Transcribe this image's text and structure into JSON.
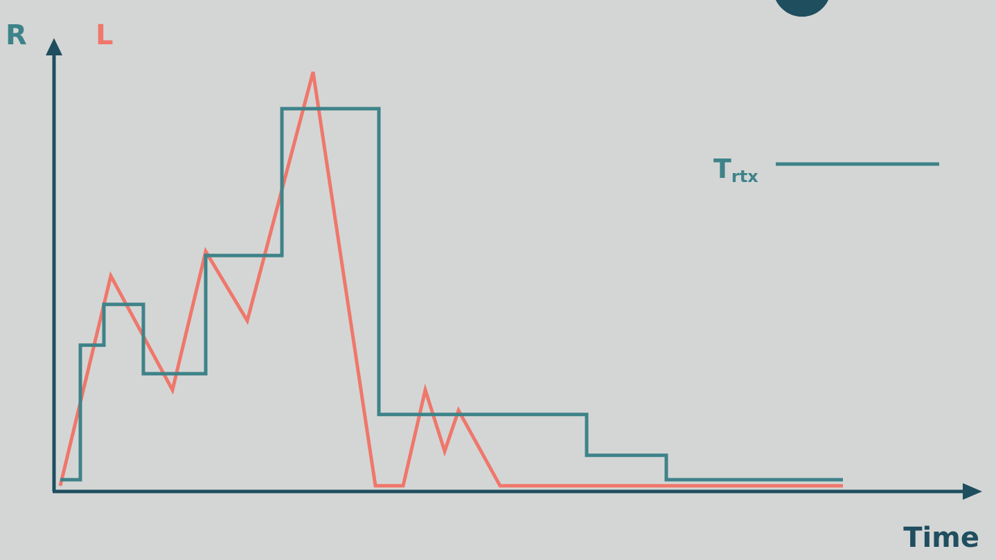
{
  "colors": {
    "background": "#d4d6d5",
    "axis": "#1f4e5f",
    "rtx_line": "#3e8389",
    "load_line": "#ef776b"
  },
  "labels": {
    "r_axis": "R",
    "l_axis": "L",
    "x_axis": "Time",
    "legend_main": "T",
    "legend_sub": "rtx"
  },
  "chart_data": {
    "type": "line",
    "xlabel": "Time",
    "ylabel": "",
    "grid": false,
    "legend_position": "right",
    "series": [
      {
        "name": "Trtx",
        "color": "#3e8389",
        "step": true,
        "points": [
          [
            0,
            0
          ],
          [
            2.9,
            0
          ],
          [
            2.9,
            3.3
          ],
          [
            6.3,
            3.3
          ],
          [
            6.3,
            4.3
          ],
          [
            12.0,
            4.3
          ],
          [
            12.0,
            2.6
          ],
          [
            21.0,
            2.6
          ],
          [
            21.0,
            5.5
          ],
          [
            32.0,
            5.5
          ],
          [
            32.0,
            9.1
          ],
          [
            46.0,
            9.1
          ],
          [
            46.0,
            1.6
          ],
          [
            76.0,
            1.6
          ],
          [
            76.0,
            0.6
          ],
          [
            87.5,
            0.6
          ],
          [
            87.5,
            0.0
          ],
          [
            113.0,
            0.0
          ]
        ]
      },
      {
        "name": "L",
        "color": "#ef776b",
        "step": false,
        "points": [
          [
            0,
            -0.15
          ],
          [
            7.3,
            5.0
          ],
          [
            16.2,
            2.2
          ],
          [
            21.0,
            5.6
          ],
          [
            27.0,
            3.9
          ],
          [
            36.5,
            10.0
          ],
          [
            45.5,
            -0.15
          ],
          [
            49.5,
            -0.15
          ],
          [
            52.7,
            2.2
          ],
          [
            55.5,
            0.7
          ],
          [
            57.5,
            1.7
          ],
          [
            63.5,
            -0.15
          ],
          [
            113.0,
            -0.15
          ]
        ]
      }
    ]
  }
}
